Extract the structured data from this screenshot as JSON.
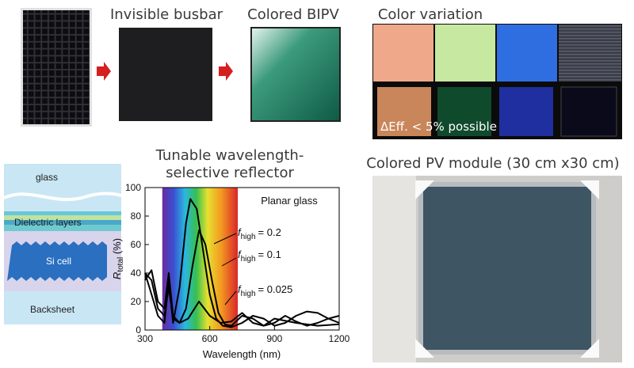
{
  "headings": {
    "invisible_busbar": "Invisible busbar",
    "colored_bipv": "Colored BIPV",
    "color_variation": "Color variation",
    "efficiency_note": "ΔEff. < 5% possible",
    "reflector_line1": "Tunable wavelength-",
    "reflector_line2": "selective reflector",
    "module": "Colored PV module (30 cm x30 cm)"
  },
  "stack_diagram": {
    "layers": [
      "glass",
      "Dielectric layers",
      "Si cell",
      "Backsheet"
    ]
  },
  "chart_data": {
    "type": "line",
    "annotation": "Planar glass",
    "xlabel": "Wavelength (nm)",
    "ylabel_symbol": "R",
    "ylabel_subscript": "total",
    "ylabel_unit": " (%)",
    "xlim": [
      300,
      1200
    ],
    "ylim": [
      0,
      100
    ],
    "xticks": [
      300,
      600,
      900,
      1200
    ],
    "yticks": [
      0,
      20,
      40,
      60,
      80,
      100
    ],
    "spectrum_range": [
      380,
      730
    ],
    "series": [
      {
        "name_symbol": "f",
        "name_subscript": "high",
        "name": "= 0.2",
        "color": "#000000",
        "x": [
          300,
          330,
          360,
          390,
          410,
          430,
          460,
          490,
          510,
          540,
          570,
          600,
          630,
          660,
          700,
          750,
          800,
          850,
          900,
          950,
          1000,
          1050,
          1100,
          1150,
          1200
        ],
        "values": [
          40,
          25,
          10,
          5,
          35,
          5,
          30,
          75,
          92,
          85,
          55,
          25,
          8,
          3,
          2,
          5,
          10,
          8,
          3,
          5,
          10,
          13,
          12,
          8,
          5
        ]
      },
      {
        "name_symbol": "f",
        "name_subscript": "high",
        "name": "= 0.1",
        "color": "#000000",
        "x": [
          300,
          330,
          360,
          390,
          410,
          430,
          460,
          490,
          520,
          550,
          580,
          610,
          640,
          670,
          700,
          750,
          800,
          850,
          900,
          950,
          1000,
          1050,
          1100,
          1150,
          1200
        ],
        "values": [
          40,
          35,
          15,
          10,
          30,
          8,
          5,
          15,
          45,
          70,
          60,
          35,
          12,
          4,
          3,
          10,
          8,
          3,
          5,
          10,
          6,
          3,
          5,
          8,
          10
        ]
      },
      {
        "name_symbol": "f",
        "name_subscript": "high",
        "name": "= 0.025",
        "color": "#000000",
        "x": [
          300,
          330,
          360,
          390,
          410,
          430,
          460,
          500,
          550,
          600,
          650,
          700,
          750,
          800,
          850,
          900,
          1000,
          1100,
          1200
        ],
        "values": [
          35,
          42,
          20,
          15,
          40,
          10,
          5,
          8,
          20,
          10,
          5,
          6,
          12,
          5,
          3,
          8,
          5,
          3,
          4
        ]
      }
    ]
  }
}
